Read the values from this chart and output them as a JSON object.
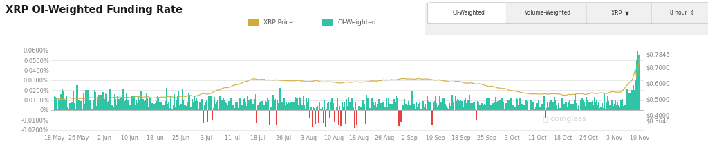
{
  "title": "XRP OI-Weighted Funding Rate",
  "background_color": "#ffffff",
  "plot_bg_color": "#ffffff",
  "x_labels": [
    "18 May",
    "26 May",
    "2 Jun",
    "10 Jun",
    "18 Jun",
    "25 Jun",
    "3 Jul",
    "11 Jul",
    "18 Jul",
    "26 Jul",
    "3 Aug",
    "10 Aug",
    "18 Aug",
    "26 Aug",
    "2 Sep",
    "10 Sep",
    "18 Sep",
    "25 Sep",
    "3 Oct",
    "11 Oct",
    "18 Oct",
    "26 Oct",
    "3 Nov",
    "10 Nov"
  ],
  "y_left_labels": [
    "0.0600%",
    "0.0500%",
    "0.0400%",
    "0.0300%",
    "0.0200%",
    "0.0100%",
    "0%",
    "-0.0100%",
    "-0.0200%"
  ],
  "y_left_values": [
    0.0006,
    0.0005,
    0.0004,
    0.0003,
    0.0002,
    0.0001,
    0.0,
    -0.0001,
    -0.0002
  ],
  "y_right_labels": [
    "$0.7846",
    "$0.7000",
    "$0.6000",
    "$0.5000",
    "$0.4000",
    "$0.3640"
  ],
  "y_right_values": [
    0.7846,
    0.7,
    0.6,
    0.5,
    0.4,
    0.364
  ],
  "legend_xrp_price_color": "#d4aa3a",
  "legend_oi_weighted_color": "#2ec4a5",
  "bar_positive_color": "#2ec4a5",
  "bar_negative_color": "#e84040",
  "price_line_color": "#d4aa3a",
  "watermark_text": "coinglass",
  "ylim_left": [
    -0.00023,
    0.0007
  ],
  "ylim_right": [
    0.285,
    0.87
  ],
  "n_bars": 528
}
